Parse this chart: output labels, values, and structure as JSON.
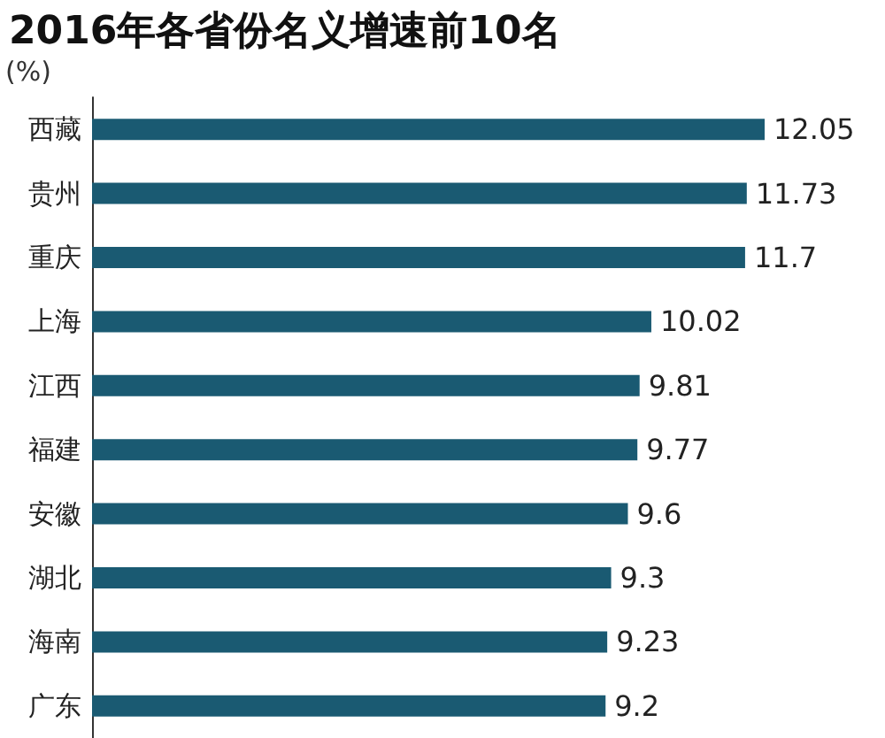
{
  "chart_data": {
    "type": "bar",
    "orientation": "horizontal",
    "title": "2016年各省份名义增速前10名",
    "xlabel": "(%)",
    "categories": [
      "西藏",
      "贵州",
      "重庆",
      "上海",
      "江西",
      "福建",
      "安徽",
      "湖北",
      "海南",
      "广东"
    ],
    "values": [
      12.05,
      11.73,
      11.7,
      10.02,
      9.81,
      9.77,
      9.6,
      9.3,
      9.23,
      9.2
    ],
    "color": "#1a5a72",
    "data_labels": true
  }
}
